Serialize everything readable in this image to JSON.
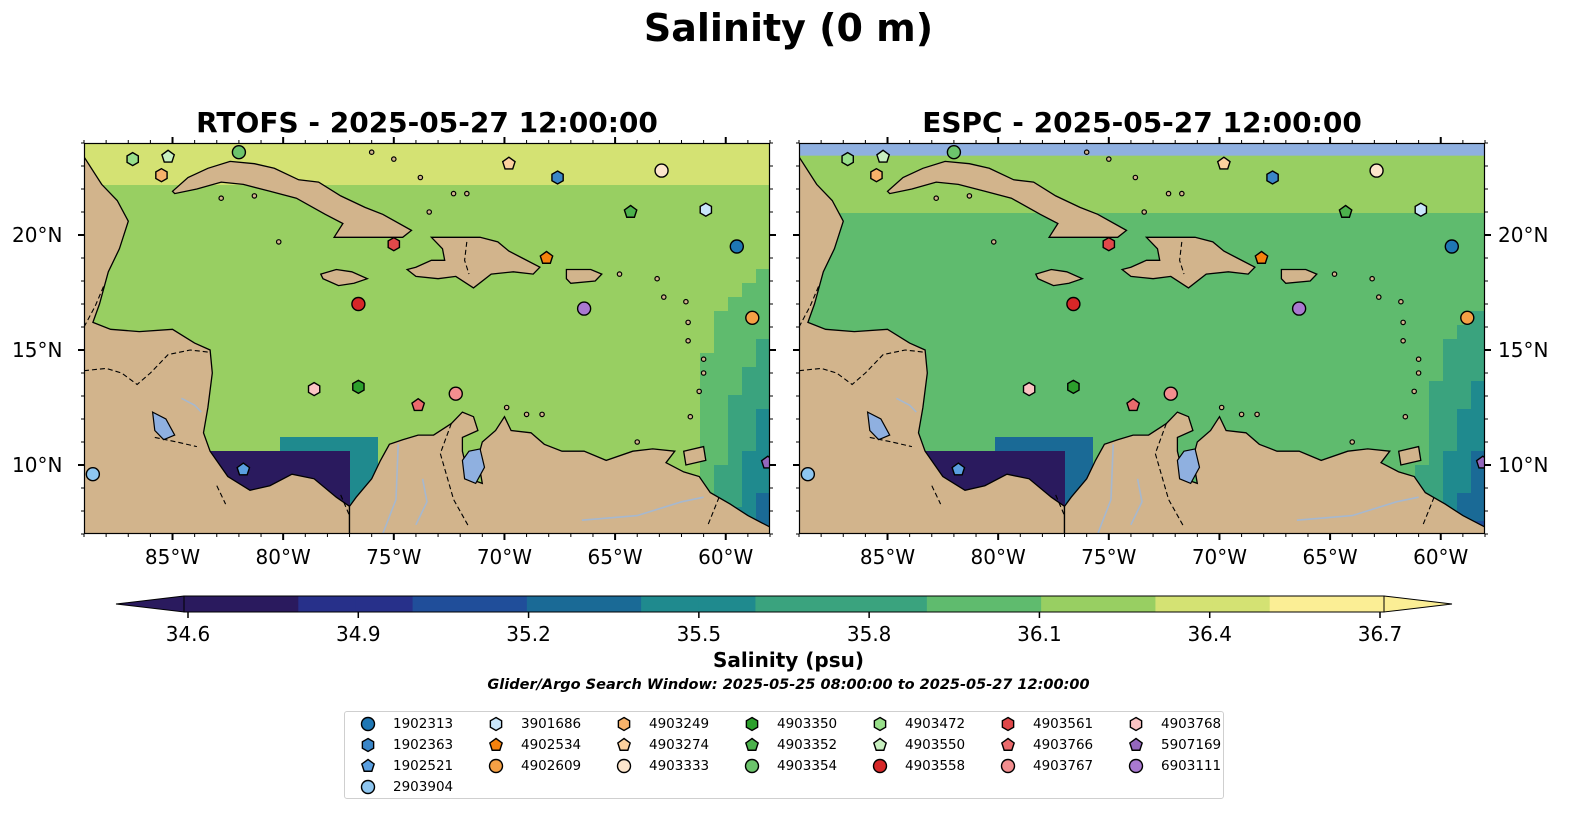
{
  "suptitle": "Salinity (0 m)",
  "panels": [
    {
      "id": "rtofs",
      "title": "RTOFS - 2025-05-27 12:00:00"
    },
    {
      "id": "espc",
      "title": "ESPC - 2025-05-27 12:00:00"
    }
  ],
  "map": {
    "lon_range": [
      -89,
      -58
    ],
    "lat_range": [
      7,
      24
    ],
    "lon_ticks": [
      "85°W",
      "80°W",
      "75°W",
      "70°W",
      "65°W",
      "60°W"
    ],
    "lat_ticks": [
      "20°N",
      "15°N",
      "10°N"
    ],
    "colors": {
      "land": "#d2b48c",
      "lakes": "#8fb0e0",
      "no_data": "#8fb0e0",
      "coast": "#000000"
    }
  },
  "colorbar": {
    "label": "Salinity (psu)",
    "ticks": [
      "34.6",
      "34.9",
      "35.2",
      "35.5",
      "35.8",
      "36.1",
      "36.4",
      "36.7"
    ],
    "range": [
      34.6,
      36.7
    ],
    "extend": "both",
    "colormap": [
      "#2a1a5e",
      "#27308a",
      "#204e9a",
      "#1a6a96",
      "#1f8a8e",
      "#3aa37e",
      "#5fbb6e",
      "#98cf62",
      "#d4e273",
      "#fbee95"
    ]
  },
  "search_window": "Glider/Argo Search Window: 2025-05-25 08:00:00 to 2025-05-27 12:00:00",
  "legend": {
    "columns": [
      [
        {
          "label": "1902313",
          "marker": "circle",
          "color": "#1f77b4"
        },
        {
          "label": "1902363",
          "marker": "hexagon",
          "color": "#3a86c8"
        },
        {
          "label": "1902521",
          "marker": "pentagon",
          "color": "#5a9fe0"
        },
        {
          "label": "2903904",
          "marker": "circle",
          "color": "#8ec6f0"
        }
      ],
      [
        {
          "label": "3901686",
          "marker": "hexagon",
          "color": "#c9e6fb"
        },
        {
          "label": "4902534",
          "marker": "pentagon",
          "color": "#f5820d"
        },
        {
          "label": "4902609",
          "marker": "circle",
          "color": "#f5a045"
        }
      ],
      [
        {
          "label": "4903249",
          "marker": "hexagon",
          "color": "#f7b26a"
        },
        {
          "label": "4903274",
          "marker": "pentagon",
          "color": "#fcd19e"
        },
        {
          "label": "4903333",
          "marker": "circle",
          "color": "#fde6cc"
        }
      ],
      [
        {
          "label": "4903350",
          "marker": "hexagon",
          "color": "#2ca02c"
        },
        {
          "label": "4903352",
          "marker": "pentagon",
          "color": "#4cb24c"
        },
        {
          "label": "4903354",
          "marker": "circle",
          "color": "#6cc46c"
        }
      ],
      [
        {
          "label": "4903472",
          "marker": "hexagon",
          "color": "#98df8a"
        },
        {
          "label": "4903550",
          "marker": "pentagon",
          "color": "#c8f0c0"
        },
        {
          "label": "4903558",
          "marker": "circle",
          "color": "#d62728"
        }
      ],
      [
        {
          "label": "4903561",
          "marker": "hexagon",
          "color": "#e0484a"
        },
        {
          "label": "4903766",
          "marker": "pentagon",
          "color": "#ea6a6c"
        },
        {
          "label": "4903767",
          "marker": "circle",
          "color": "#f28e8f"
        }
      ],
      [
        {
          "label": "4903768",
          "marker": "hexagon",
          "color": "#fbc4c4"
        },
        {
          "label": "5907169",
          "marker": "pentagon",
          "color": "#9467bd"
        },
        {
          "label": "6903111",
          "marker": "circle",
          "color": "#a979d0"
        }
      ]
    ]
  },
  "floats": [
    {
      "id": "4903472",
      "lon": -86.8,
      "lat": 23.3
    },
    {
      "id": "4903550",
      "lon": -85.2,
      "lat": 23.4
    },
    {
      "id": "4903354",
      "lon": -82.0,
      "lat": 23.6
    },
    {
      "id": "4903249",
      "lon": -85.5,
      "lat": 22.6
    },
    {
      "id": "4903274",
      "lon": -69.8,
      "lat": 23.1
    },
    {
      "id": "1902363",
      "lon": -67.6,
      "lat": 22.5
    },
    {
      "id": "4903333",
      "lon": -62.9,
      "lat": 22.8
    },
    {
      "id": "4903352",
      "lon": -64.3,
      "lat": 21.0
    },
    {
      "id": "3901686",
      "lon": -60.9,
      "lat": 21.1
    },
    {
      "id": "1902313",
      "lon": -59.5,
      "lat": 19.5
    },
    {
      "id": "4903561",
      "lon": -75.0,
      "lat": 19.6
    },
    {
      "id": "4902534",
      "lon": -68.1,
      "lat": 19.0
    },
    {
      "id": "4903558",
      "lon": -76.6,
      "lat": 17.0
    },
    {
      "id": "6903111",
      "lon": -66.4,
      "lat": 16.8
    },
    {
      "id": "4902609",
      "lon": -58.8,
      "lat": 16.4
    },
    {
      "id": "4903768",
      "lon": -78.6,
      "lat": 13.3
    },
    {
      "id": "4903350",
      "lon": -76.6,
      "lat": 13.4
    },
    {
      "id": "4903766",
      "lon": -73.9,
      "lat": 12.6
    },
    {
      "id": "4903767",
      "lon": -72.2,
      "lat": 13.1
    },
    {
      "id": "2903904",
      "lon": -88.6,
      "lat": 9.6
    },
    {
      "id": "1902521",
      "lon": -81.8,
      "lat": 9.8
    },
    {
      "id": "5907169",
      "lon": -58.1,
      "lat": 10.1
    }
  ]
}
